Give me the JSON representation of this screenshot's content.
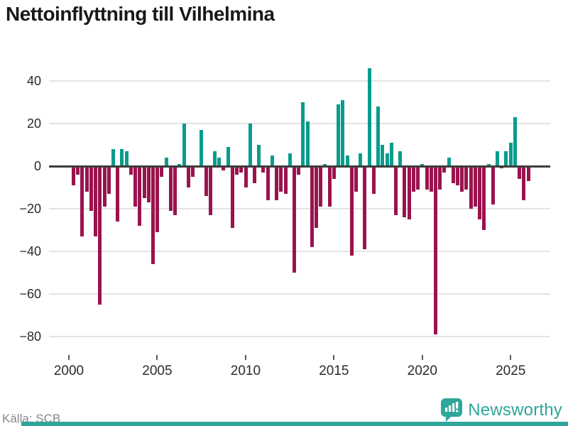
{
  "header": {
    "title": "Nettoinflyttning till Vilhelmina"
  },
  "footer": {
    "source": "Källa: SCB",
    "brand_name": "Newsworthy"
  },
  "colors": {
    "positive": "#089c8c",
    "negative": "#9a134d",
    "brand_teal": "#2fa69a",
    "zero_line": "#3d3d3d",
    "gridline": "#e4e4e4"
  },
  "chart_data": {
    "type": "bar",
    "title": "Nettoinflyttning till Vilhelmina",
    "frequency": "quarterly",
    "x_range": "2000Q1–2025Q4",
    "x_tick_labels": [
      "2000",
      "2005",
      "2010",
      "2015",
      "2020",
      "2025"
    ],
    "y_tick_labels": [
      "40",
      "20",
      "0",
      "−20",
      "−40",
      "−60",
      "−80"
    ],
    "y_ticks": [
      40,
      20,
      0,
      -20,
      -40,
      -60,
      -80
    ],
    "ylim": [
      -85,
      50
    ],
    "grid": "horizontal",
    "values": [
      -9,
      -4,
      -33,
      -12,
      -21,
      -33,
      -65,
      -19,
      -13,
      8,
      -26,
      8,
      7,
      -4,
      -19,
      -28,
      -15,
      -17,
      -46,
      -31,
      -5,
      4,
      -21,
      -23,
      1,
      20,
      -10,
      -5,
      0,
      17,
      -14,
      -23,
      7,
      4,
      -2,
      9,
      -29,
      -4,
      -3,
      -10,
      20,
      -8,
      10,
      -3,
      -16,
      5,
      -16,
      -12,
      -13,
      6,
      -50,
      -4,
      30,
      21,
      -38,
      -29,
      -19,
      1,
      -19,
      -6,
      29,
      31,
      5,
      -42,
      -12,
      6,
      -39,
      46,
      -13,
      28,
      10,
      6,
      11,
      -23,
      7,
      -24,
      -25,
      -12,
      -11,
      1,
      -11,
      -12,
      -79,
      -11,
      -3,
      4,
      -8,
      -9,
      -12,
      -11,
      -20,
      -19,
      -25,
      -30,
      1,
      -18,
      7,
      -1,
      7,
      11,
      23,
      -6,
      -16,
      -7
    ]
  }
}
